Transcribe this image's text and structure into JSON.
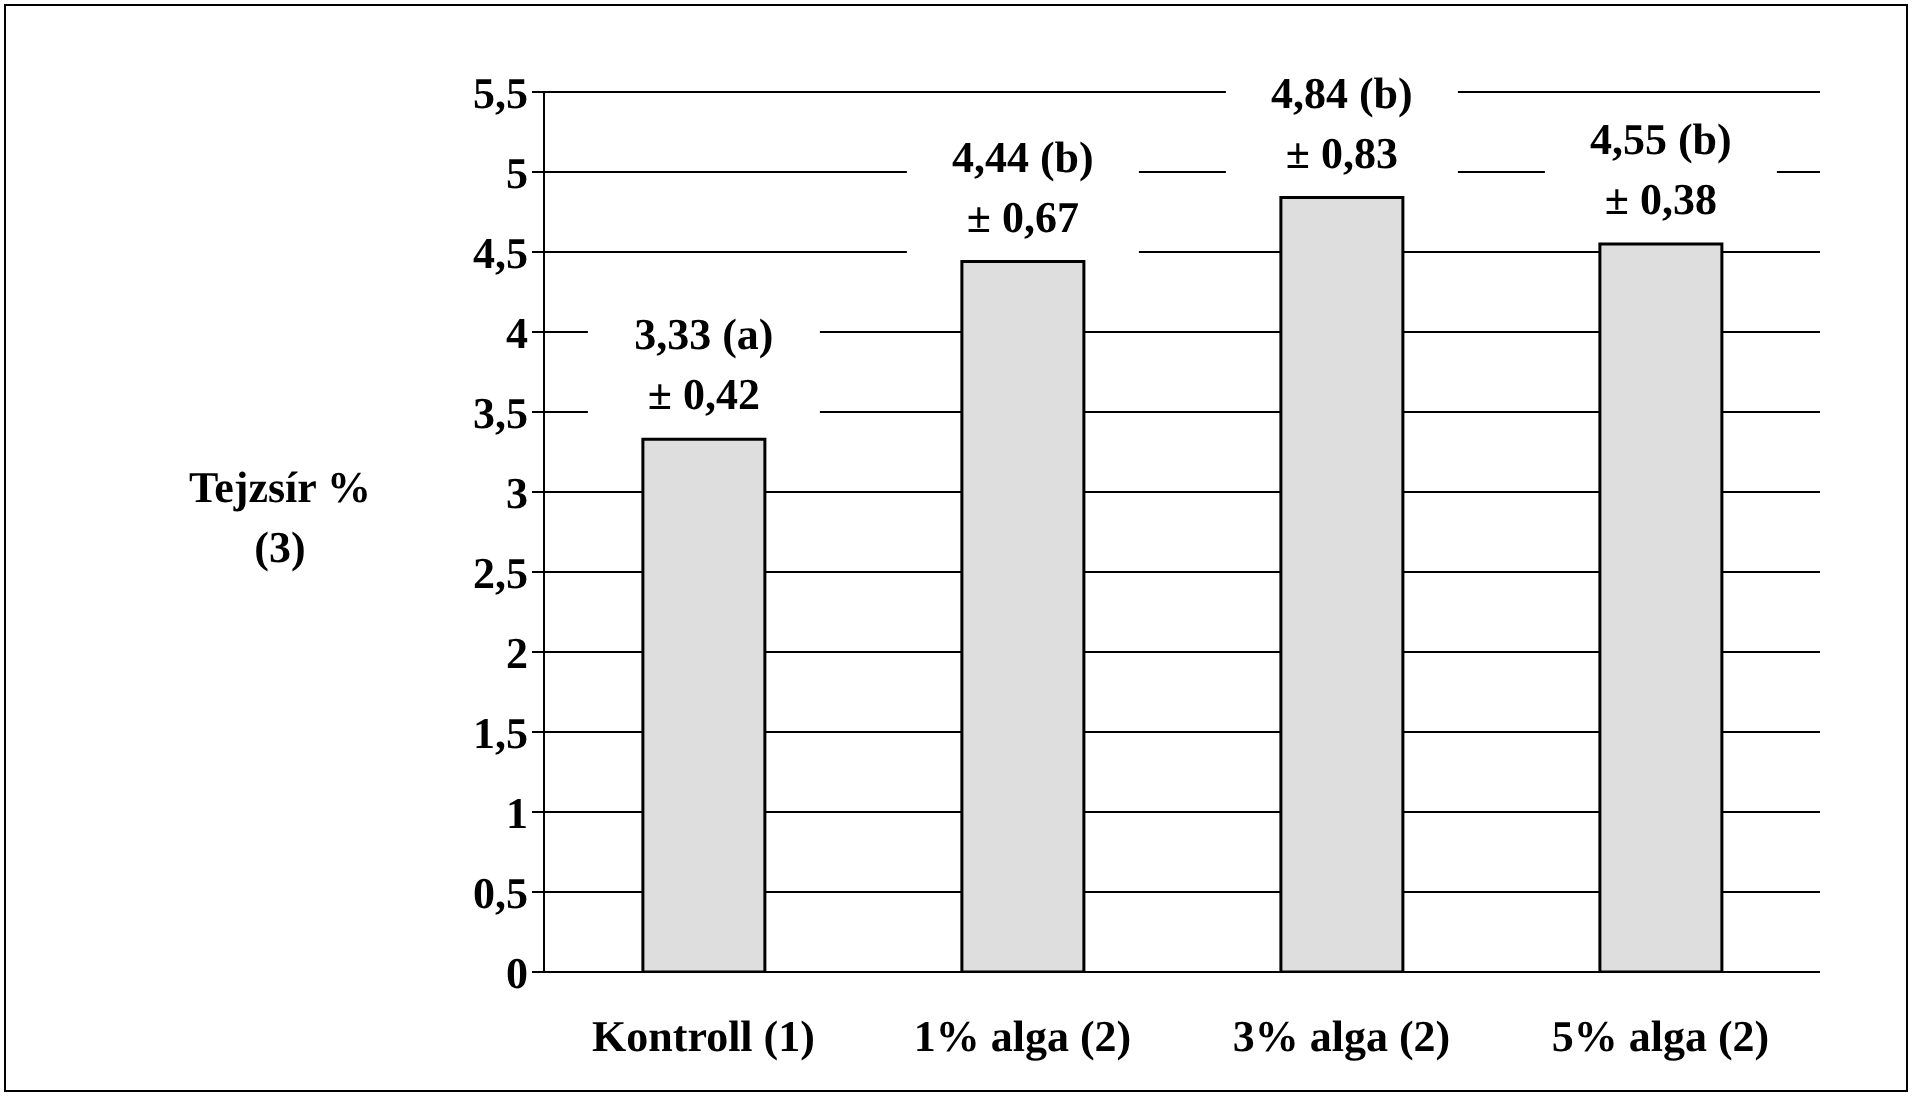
{
  "chart_data": {
    "type": "bar",
    "ylabel": "Tejzsír %\n(3)",
    "categories": [
      "Kontroll (1)",
      "1% alga (2)",
      "3% alga (2)",
      "5% alga (2)"
    ],
    "values": [
      3.33,
      4.44,
      4.84,
      4.55
    ],
    "value_labels": [
      "3,33 (a)\n± 0,42",
      "4,44 (b)\n± 0,67",
      "4,84 (b)\n± 0,83",
      "4,55 (b)\n± 0,38"
    ],
    "color": "#dedede",
    "ylim": [
      0,
      5.5
    ],
    "yticks": [
      0,
      {
        "value": 0.5,
        "label": "0,5"
      },
      1,
      {
        "value": 1.5,
        "label": "1,5"
      },
      2,
      {
        "value": 2.5,
        "label": "2,5"
      },
      3,
      {
        "value": 3.5,
        "label": "3,5"
      },
      4,
      {
        "value": 4.5,
        "label": "4,5"
      },
      5,
      {
        "value": 5.5,
        "label": "5,5"
      }
    ],
    "grid": "y",
    "legend": false
  }
}
